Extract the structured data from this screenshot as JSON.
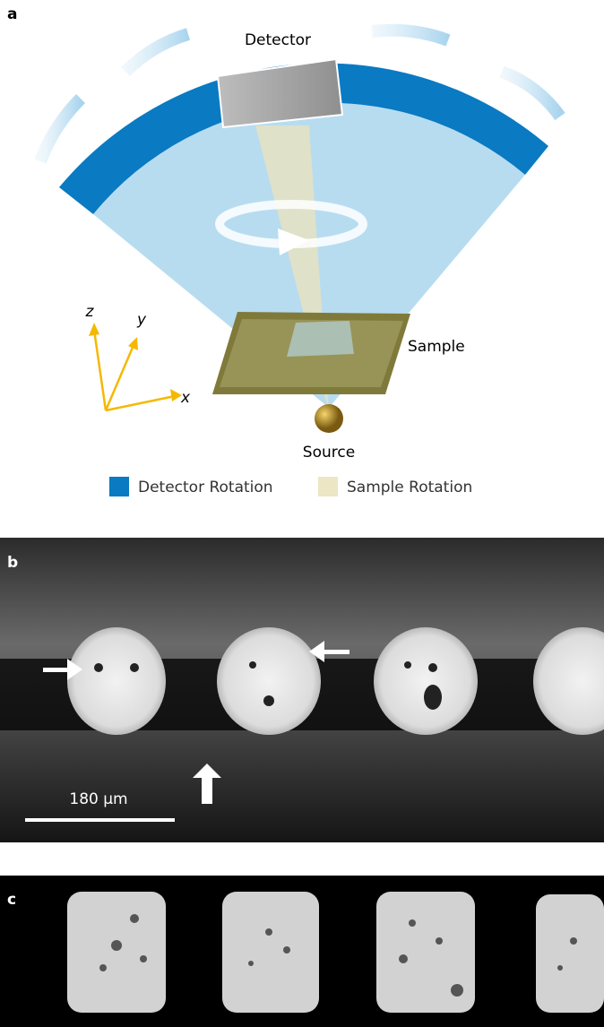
{
  "panel_a": {
    "label": "a",
    "detector": "Detector",
    "sample": "Sample",
    "source": "Source",
    "axes": {
      "z": "z",
      "y": "y",
      "x": "x"
    },
    "legend": [
      "Detector Rotation",
      "Sample Rotation"
    ]
  },
  "panel_b": {
    "label": "b",
    "scale_bar": "180 µm"
  },
  "panel_c": {
    "label": "c"
  }
}
